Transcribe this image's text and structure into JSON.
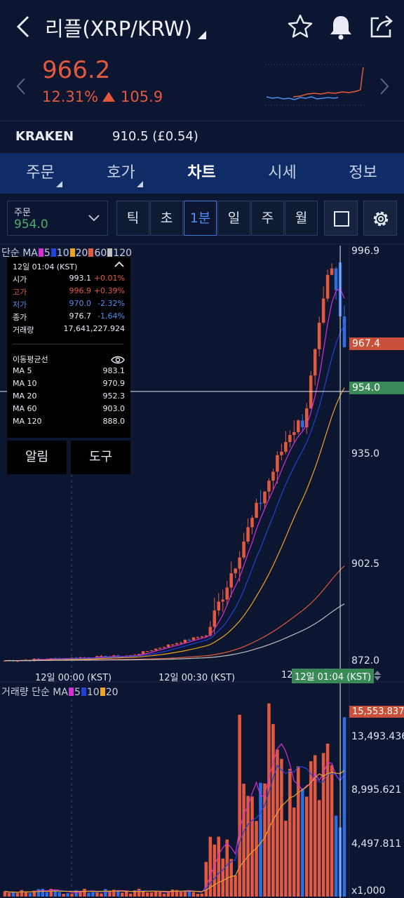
{
  "header": {
    "title": "리플(XRP/KRW)",
    "icons": [
      "back-icon",
      "star-icon",
      "bell-icon",
      "share-icon"
    ]
  },
  "price": {
    "value": "966.2",
    "change_pct": "12.31%",
    "change_abs": "105.9",
    "color": "#e2593f"
  },
  "exchange": {
    "name": "KRAKEN",
    "value": "910.5 (£0.54)"
  },
  "tabs": [
    {
      "label": "주문",
      "caret": true
    },
    {
      "label": "호가",
      "caret": true
    },
    {
      "label": "차트",
      "active": true
    },
    {
      "label": "시세"
    },
    {
      "label": "정보"
    }
  ],
  "toolbar": {
    "order_label": "주문",
    "order_value": "954.0",
    "timeframes": [
      {
        "label": "틱"
      },
      {
        "label": "초"
      },
      {
        "label": "1분",
        "active": true
      },
      {
        "label": "일"
      },
      {
        "label": "주"
      },
      {
        "label": "월"
      }
    ]
  },
  "price_chart": {
    "legend_prefix": "단순 MA",
    "legend": [
      {
        "label": "5",
        "color": "#d42fd4"
      },
      {
        "label": "10",
        "color": "#2341d6"
      },
      {
        "label": "20",
        "color": "#f0a322"
      },
      {
        "label": "60",
        "color": "#e2593f"
      },
      {
        "label": "120",
        "color": "#bfbfbf"
      }
    ],
    "y_ticks": [
      "996.9",
      "935.0",
      "902.5",
      "872.0"
    ],
    "current_tag": "967.4",
    "crosshair_tag": "954.0",
    "x_ticks": [
      "12일 00:00 (KST)",
      "12일 00:30 (KST)",
      "12"
    ],
    "crosshair_time": "12일 01:04 (KST)"
  },
  "info_panel": {
    "time": "12일 01:04 (KST)",
    "ohlc": [
      {
        "label": "시가",
        "value": "993.1",
        "pct": "+0.01%",
        "color": "#e8ecf4",
        "pct_color": "#e2593f"
      },
      {
        "label": "고가",
        "value": "996.9",
        "pct": "+0.39%",
        "color": "#e2593f",
        "pct_color": "#e2593f"
      },
      {
        "label": "저가",
        "value": "970.0",
        "pct": "-2.32%",
        "color": "#4f8ef0",
        "pct_color": "#4f8ef0"
      },
      {
        "label": "종가",
        "value": "976.7",
        "pct": "-1.64%",
        "color": "#e8ecf4",
        "pct_color": "#4f8ef0"
      }
    ],
    "volume_label": "거래량",
    "volume_value": "17,641,227.924",
    "ma_title": "이동평균선",
    "ma": [
      {
        "label": "MA 5",
        "value": "983.1"
      },
      {
        "label": "MA 10",
        "value": "970.9"
      },
      {
        "label": "MA 20",
        "value": "952.3"
      },
      {
        "label": "MA 60",
        "value": "903.0"
      },
      {
        "label": "MA 120",
        "value": "888.0"
      }
    ],
    "alarm_label": "알림",
    "tools_label": "도구"
  },
  "volume_chart": {
    "legend_prefix": "거래량 단순 MA",
    "legend": [
      {
        "label": "5",
        "color": "#d42fd4"
      },
      {
        "label": "10",
        "color": "#2341d6"
      },
      {
        "label": "20",
        "color": "#f0a322"
      }
    ],
    "y_ticks": [
      "13,493.436",
      "8,995.621",
      "4,497.811",
      "x1,000"
    ],
    "current_tag": "15,553.837"
  },
  "chart_data": [
    {
      "type": "candlestick",
      "title": "",
      "ylim": [
        872.0,
        996.9
      ],
      "y_ticks": [
        996.9,
        935.0,
        902.5,
        872.0
      ],
      "x_ticks": [
        "12일 00:00 (KST)",
        "12일 00:30 (KST)",
        "12일 01:04 (KST)"
      ],
      "last_close": 967.4,
      "crosshair_price": 954.0,
      "series": [
        {
          "name": "5",
          "color": "#d42fd4"
        },
        {
          "name": "10",
          "color": "#2341d6"
        },
        {
          "name": "20",
          "color": "#f0a322"
        },
        {
          "name": "60",
          "color": "#e2593f"
        },
        {
          "name": "120",
          "color": "#bfbfbf"
        }
      ],
      "selected_candle": {
        "open": 993.1,
        "high": 996.9,
        "low": 970.0,
        "close": 976.7
      }
    },
    {
      "type": "bar",
      "title": "",
      "unit": "x1,000",
      "y_ticks": [
        13493.436,
        8995.621,
        4497.811
      ],
      "last_value": 15553.837,
      "series": [
        {
          "name": "5",
          "color": "#d42fd4"
        },
        {
          "name": "10",
          "color": "#2341d6"
        },
        {
          "name": "20",
          "color": "#f0a322"
        }
      ]
    }
  ]
}
